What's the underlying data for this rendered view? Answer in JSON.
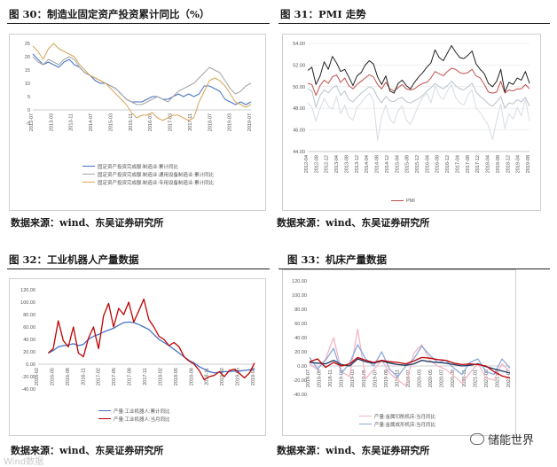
{
  "captions": {
    "fig30": "图 30：制造业固定资产投资累计同比（%）",
    "fig31": "图 31：PMI 走势",
    "fig32": "图 32：工业机器人产量数据",
    "fig33": "图 33：机床产量数据"
  },
  "sources": {
    "s30": "数据来源：wind、东吴证券研究所",
    "s31": "数据来源：wind、东吴证券研究所",
    "s32": "数据来源：wind、东吴证券研究所",
    "s33": "数据来源：wind、东吴证券研究所"
  },
  "watermark": {
    "right": "储能世界",
    "left": "Wind数据"
  },
  "chart_data": [
    {
      "id": "c30",
      "type": "line",
      "title": "",
      "y_ticks": [
        "25",
        "20",
        "15",
        "10",
        "5",
        "0",
        "-5"
      ],
      "ylim": [
        -5,
        25
      ],
      "x_ticks": [
        "2012-07",
        "2013-03",
        "2013-11",
        "2014-07",
        "2015-03",
        "2015-11",
        "2016-07",
        "2017-03",
        "2017-11",
        "2018-07",
        "2019-03",
        "2019-07"
      ],
      "legend_position": "bottom-left",
      "series": [
        {
          "name": "固定资产投资完成额:制造业:累计同比",
          "color": "#4472c4",
          "values": [
            21,
            19,
            17,
            18,
            17,
            16,
            18,
            19,
            17,
            16,
            14,
            13,
            11,
            10,
            10,
            9,
            8,
            6,
            4,
            3,
            3,
            3,
            4,
            5,
            5,
            4,
            4,
            5,
            6,
            5,
            6,
            5,
            6,
            9,
            9,
            8,
            7,
            4,
            3,
            2,
            3,
            2,
            3
          ]
        },
        {
          "name": "固定资产投资完成额:制造业:通用设备制造业:累计同比",
          "color": "#a5a5a5",
          "values": [
            20,
            18,
            17,
            19,
            18,
            17,
            19,
            20,
            19,
            16,
            14,
            13,
            12,
            11,
            10,
            9,
            8,
            6,
            4,
            3,
            2,
            2,
            3,
            4,
            5,
            4,
            3,
            5,
            7,
            8,
            9,
            10,
            12,
            14,
            16,
            15,
            14,
            11,
            8,
            6,
            7,
            9,
            10
          ]
        },
        {
          "name": "固定资产投资完成额:制造业:专用设备制造业:累计同比",
          "color": "#d6a55a",
          "values": [
            24,
            22,
            19,
            23,
            25,
            23,
            22,
            21,
            20,
            17,
            15,
            13,
            12,
            11,
            10,
            8,
            6,
            4,
            2,
            -1,
            -3,
            -2,
            -2,
            -1,
            -3,
            -4,
            -3,
            -2,
            -2,
            -3,
            -4,
            -3,
            3,
            7,
            11,
            12,
            11,
            9,
            6,
            3,
            2,
            1,
            2
          ]
        }
      ]
    },
    {
      "id": "c31",
      "type": "line",
      "title": "",
      "y_ticks": [
        "54.00",
        "52.00",
        "50.00",
        "48.00",
        "46.00",
        "44.00"
      ],
      "ylim": [
        44,
        54
      ],
      "x_ticks": [
        "2012-04",
        "2012-08",
        "2012-12",
        "2013-04",
        "2013-08",
        "2013-12",
        "2014-04",
        "2014-08",
        "2014-12",
        "2015-04",
        "2015-08",
        "2015-12",
        "2016-04",
        "2016-08",
        "2016-12",
        "2017-04",
        "2017-08",
        "2017-12",
        "2018-04",
        "2018-08",
        "2018-12",
        "2019-04",
        "2019-08"
      ],
      "legend_position": "bottom",
      "series": [
        {
          "name": "PMI",
          "color": "#c0504d",
          "values": [
            50.3,
            50.2,
            49.2,
            50.1,
            50.6,
            50.3,
            50.9,
            51.1,
            50.4,
            50.8,
            50.1,
            49.8,
            50.2,
            50.5,
            50.8,
            51.1,
            50.9,
            50.2,
            49.8,
            50.4,
            49.8,
            49.6,
            49.9,
            50.2,
            49.8,
            49.7,
            49.8,
            50.1,
            50.3,
            50.4,
            50.8,
            51.4,
            51.2,
            51.0,
            51.4,
            51.7,
            51.6,
            51.3,
            51.2,
            51.3,
            51.6,
            51.0,
            50.8,
            50.2,
            49.5,
            49.4,
            49.5,
            50.5,
            49.4,
            49.7,
            49.6,
            49.8,
            49.8,
            50.2,
            49.8
          ]
        },
        {
          "name": "",
          "color": "#222222",
          "values": [
            51.5,
            51.8,
            50.2,
            51.0,
            52.3,
            51.6,
            52.8,
            52.2,
            51.4,
            51.6,
            50.9,
            50.1,
            51.0,
            51.3,
            52.0,
            52.4,
            52.1,
            50.9,
            50.2,
            51.0,
            49.6,
            49.4,
            50.3,
            50.6,
            50.1,
            49.8,
            50.4,
            50.9,
            51.3,
            51.8,
            52.2,
            53.4,
            52.7,
            52.4,
            53.1,
            53.8,
            53.2,
            52.7,
            52.6,
            52.9,
            53.3,
            52.1,
            51.6,
            51.2,
            50.3,
            50.0,
            50.5,
            51.6,
            49.5,
            50.4,
            50.2,
            50.8,
            50.6,
            51.4,
            50.3
          ]
        },
        {
          "name": "",
          "color": "#b7c3cc",
          "values": [
            49.8,
            49.6,
            48.1,
            49.2,
            49.7,
            49.4,
            49.9,
            50.1,
            49.2,
            49.6,
            48.8,
            48.6,
            49.0,
            49.4,
            49.7,
            50.0,
            49.8,
            49.0,
            48.5,
            49.1,
            48.7,
            48.6,
            48.9,
            49.0,
            48.6,
            48.5,
            48.7,
            48.9,
            49.2,
            49.6,
            49.9,
            50.3,
            50.0,
            49.8,
            50.1,
            50.5,
            50.1,
            49.8,
            49.7,
            50.0,
            50.3,
            49.5,
            49.1,
            48.8,
            48.4,
            48.2,
            48.6,
            49.1,
            48.0,
            48.5,
            48.4,
            48.8,
            48.6,
            49.0,
            48.2
          ]
        },
        {
          "name": "",
          "color": "#d7dde3",
          "values": [
            48.5,
            48.1,
            46.8,
            48.0,
            48.9,
            48.2,
            47.9,
            49.1,
            47.5,
            48.3,
            47.2,
            46.9,
            48.1,
            48.5,
            49.0,
            49.4,
            48.7,
            45.0,
            47.2,
            48.3,
            47.0,
            46.6,
            47.8,
            48.2,
            46.9,
            46.5,
            47.4,
            48.3,
            49.0,
            49.4,
            48.5,
            50.1,
            49.2,
            48.8,
            49.6,
            50.2,
            49.0,
            48.5,
            48.3,
            49.2,
            49.7,
            48.0,
            47.6,
            47.0,
            46.4,
            45.1,
            46.9,
            48.4,
            46.1,
            47.5,
            47.0,
            48.1,
            47.3,
            48.8,
            46.8
          ]
        }
      ]
    },
    {
      "id": "c32",
      "type": "line",
      "title": "",
      "y_ticks": [
        "120.00",
        "100.00",
        "80.00",
        "60.00",
        "40.00",
        "20.00",
        "0.00",
        "-20.00",
        "-40.00"
      ],
      "ylim": [
        -40,
        120
      ],
      "x_ticks": [
        "2016-02",
        "2016-05",
        "2016-08",
        "2016-11",
        "2017-02",
        "2017-05",
        "2017-08",
        "2017-11",
        "2018-02",
        "2018-05",
        "2018-08",
        "2018-11",
        "2019-02",
        "2019-05",
        "2019-08"
      ],
      "legend_position": "bottom-left",
      "series": [
        {
          "name": "产量:工业机器人:累计同比",
          "color": "#4472c4",
          "values": [
            null,
            null,
            18,
            22,
            28,
            30,
            31,
            33,
            30,
            32,
            40,
            45,
            48,
            52,
            55,
            58,
            63,
            67,
            68,
            67,
            64,
            60,
            56,
            48,
            40,
            35,
            30,
            24,
            18,
            12,
            6,
            2,
            -4,
            -8,
            -12,
            -14,
            -13,
            -12,
            -12,
            -11,
            -11,
            -10,
            -9,
            -8
          ]
        },
        {
          "name": "产量:工业机器人:当月同比",
          "color": "#c00000",
          "values": [
            null,
            null,
            18,
            25,
            70,
            38,
            28,
            60,
            18,
            12,
            42,
            60,
            25,
            78,
            98,
            60,
            90,
            80,
            100,
            68,
            86,
            105,
            72,
            60,
            45,
            40,
            30,
            35,
            28,
            12,
            5,
            0,
            -10,
            -25,
            -20,
            -18,
            -12,
            -20,
            -10,
            -8,
            -15,
            -22,
            -14,
            2
          ]
        }
      ]
    },
    {
      "id": "c33",
      "type": "line",
      "title": "",
      "y_ticks": [
        "120.00",
        "100.00",
        "80.00",
        "60.00",
        "40.00",
        "20.00",
        "0.00",
        "-20.00",
        "-40.00"
      ],
      "ylim": [
        -40,
        120
      ],
      "x_ticks": [
        "2018-07",
        "2018-09",
        "2018-11",
        "2019-01",
        "2019-03",
        "2019-05",
        "2019-07",
        "2019-09",
        "2019-11",
        "2020-01",
        "2020-03",
        "2020-05",
        "2020-07",
        "2020-09",
        "2020-11",
        "2021-01",
        "2021-03",
        "2021-05",
        "2021-07"
      ],
      "legend_position": "bottom-left",
      "series": [
        {
          "name": "产量:金属切削机床:当月同比",
          "color": "#f4b6c2",
          "values": [
            3,
            -5,
            10,
            40,
            -8,
            -15,
            52,
            -18,
            -5,
            8,
            -10,
            -20,
            -28,
            18,
            30,
            8,
            0,
            -5,
            -14,
            -24,
            -10,
            4,
            -17,
            -20,
            3,
            -8
          ]
        },
        {
          "name": "产量:金属成形机床:当月同比",
          "color": "#8ea9db",
          "values": [
            12,
            -4,
            8,
            25,
            -10,
            4,
            30,
            10,
            0,
            20,
            -5,
            -15,
            0,
            10,
            28,
            15,
            5,
            8,
            -3,
            -12,
            5,
            10,
            -8,
            -12,
            10,
            -3
          ]
        },
        {
          "name": "",
          "color": "#1f3864",
          "values": [
            5,
            4,
            3,
            8,
            2,
            0,
            10,
            6,
            4,
            7,
            4,
            2,
            1,
            3,
            8,
            6,
            5,
            4,
            2,
            0,
            1,
            3,
            -1,
            -4,
            -7,
            -10
          ]
        },
        {
          "name": "",
          "color": "#c00000",
          "values": [
            6,
            10,
            -2,
            5,
            0,
            3,
            12,
            8,
            5,
            8,
            6,
            5,
            3,
            7,
            12,
            11,
            9,
            8,
            4,
            2,
            3,
            2,
            0,
            -8,
            -14,
            -17
          ]
        }
      ]
    }
  ]
}
